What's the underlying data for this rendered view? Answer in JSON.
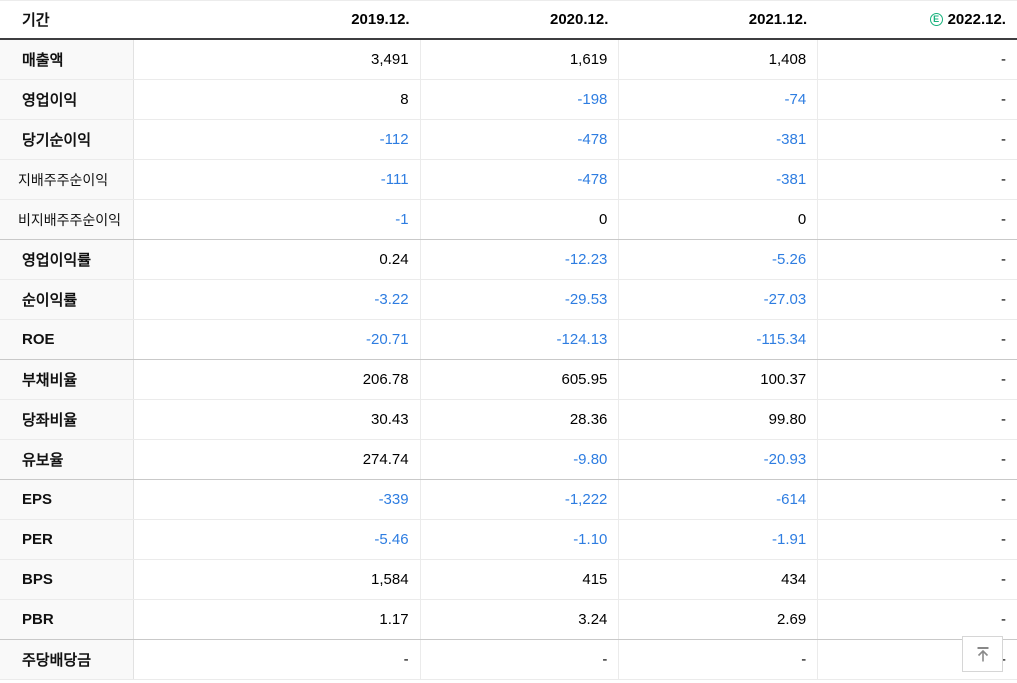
{
  "table": {
    "period_header": "기간",
    "year_columns": [
      {
        "label": "2019.12.",
        "estimate": false
      },
      {
        "label": "2020.12.",
        "estimate": false
      },
      {
        "label": "2021.12.",
        "estimate": false
      },
      {
        "label": "2022.12.",
        "estimate": true
      }
    ],
    "estimate_icon": {
      "glyph": "E",
      "color": "#17b27c",
      "meaning": "estimate"
    },
    "negative_value_color": "#2e7de1",
    "rows": [
      {
        "label": "매출액",
        "style": "main",
        "group_end": false,
        "values": [
          "3,491",
          "1,619",
          "1,408",
          "-"
        ]
      },
      {
        "label": "영업이익",
        "style": "main",
        "group_end": false,
        "values": [
          "8",
          "-198",
          "-74",
          "-"
        ]
      },
      {
        "label": "당기순이익",
        "style": "main",
        "group_end": false,
        "values": [
          "-112",
          "-478",
          "-381",
          "-"
        ]
      },
      {
        "label": "지배주주순이익",
        "style": "sub",
        "group_end": false,
        "values": [
          "-111",
          "-478",
          "-381",
          "-"
        ]
      },
      {
        "label": "비지배주주순이익",
        "style": "sub",
        "group_end": true,
        "values": [
          "-1",
          "0",
          "0",
          "-"
        ]
      },
      {
        "label": "영업이익률",
        "style": "main",
        "group_end": false,
        "values": [
          "0.24",
          "-12.23",
          "-5.26",
          "-"
        ]
      },
      {
        "label": "순이익률",
        "style": "main",
        "group_end": false,
        "values": [
          "-3.22",
          "-29.53",
          "-27.03",
          "-"
        ]
      },
      {
        "label": "ROE",
        "style": "main",
        "group_end": true,
        "values": [
          "-20.71",
          "-124.13",
          "-115.34",
          "-"
        ]
      },
      {
        "label": "부채비율",
        "style": "main",
        "group_end": false,
        "values": [
          "206.78",
          "605.95",
          "100.37",
          "-"
        ]
      },
      {
        "label": "당좌비율",
        "style": "main",
        "group_end": false,
        "values": [
          "30.43",
          "28.36",
          "99.80",
          "-"
        ]
      },
      {
        "label": "유보율",
        "style": "main",
        "group_end": true,
        "values": [
          "274.74",
          "-9.80",
          "-20.93",
          "-"
        ]
      },
      {
        "label": "EPS",
        "style": "main",
        "group_end": false,
        "values": [
          "-339",
          "-1,222",
          "-614",
          "-"
        ]
      },
      {
        "label": "PER",
        "style": "main",
        "group_end": false,
        "values": [
          "-5.46",
          "-1.10",
          "-1.91",
          "-"
        ]
      },
      {
        "label": "BPS",
        "style": "main",
        "group_end": false,
        "values": [
          "1,584",
          "415",
          "434",
          "-"
        ]
      },
      {
        "label": "PBR",
        "style": "main",
        "group_end": true,
        "values": [
          "1.17",
          "3.24",
          "2.69",
          "-"
        ]
      },
      {
        "label": "주당배당금",
        "style": "main",
        "group_end": false,
        "values": [
          "-",
          "-",
          "-",
          "-"
        ]
      }
    ]
  },
  "scroll_top_button": {
    "icon": "arrow-up-to-top"
  }
}
